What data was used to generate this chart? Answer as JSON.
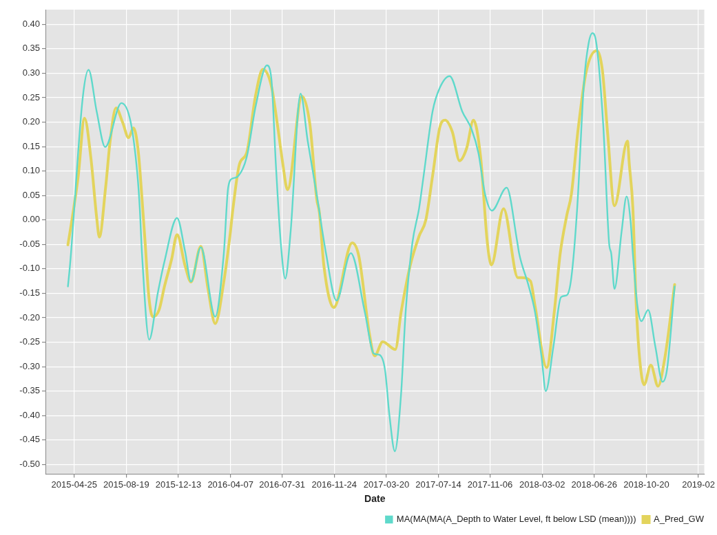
{
  "chart_data": {
    "type": "line",
    "xlabel": "Date",
    "xlim": [
      "2015-02-20",
      "2019-02-26"
    ],
    "xticks": [
      {
        "value": "2015-04-25",
        "label": "2015-04-25"
      },
      {
        "value": "2015-08-19",
        "label": "2015-08-19"
      },
      {
        "value": "2015-12-13",
        "label": "2015-12-13"
      },
      {
        "value": "2016-04-07",
        "label": "2016-04-07"
      },
      {
        "value": "2016-07-31",
        "label": "2016-07-31"
      },
      {
        "value": "2016-11-24",
        "label": "2016-11-24"
      },
      {
        "value": "2017-03-20",
        "label": "2017-03-20"
      },
      {
        "value": "2017-07-14",
        "label": "2017-07-14"
      },
      {
        "value": "2017-11-06",
        "label": "2017-11-06"
      },
      {
        "value": "2018-03-02",
        "label": "2018-03-02"
      },
      {
        "value": "2018-06-26",
        "label": "2018-06-26"
      },
      {
        "value": "2018-10-20",
        "label": "2018-10-20"
      },
      {
        "value": "2019-02-13",
        "label": "2019-02"
      }
    ],
    "ylim": [
      -0.52,
      0.43
    ],
    "yticks": [
      {
        "value": 0.4,
        "label": "0.40"
      },
      {
        "value": 0.35,
        "label": "0.35"
      },
      {
        "value": 0.3,
        "label": "0.30"
      },
      {
        "value": 0.25,
        "label": "0.25"
      },
      {
        "value": 0.2,
        "label": "0.20"
      },
      {
        "value": 0.15,
        "label": "0.15"
      },
      {
        "value": 0.1,
        "label": "0.10"
      },
      {
        "value": 0.05,
        "label": "0.05"
      },
      {
        "value": 0,
        "label": "0.00"
      },
      {
        "value": -0.05,
        "label": "-0.05"
      },
      {
        "value": -0.1,
        "label": "-0.10"
      },
      {
        "value": -0.15,
        "label": "-0.15"
      },
      {
        "value": -0.2,
        "label": "-0.20"
      },
      {
        "value": -0.25,
        "label": "-0.25"
      },
      {
        "value": -0.3,
        "label": "-0.30"
      },
      {
        "value": -0.35,
        "label": "-0.35"
      },
      {
        "value": -0.4,
        "label": "-0.40"
      },
      {
        "value": -0.45,
        "label": "-0.45"
      },
      {
        "value": -0.5,
        "label": "-0.50"
      }
    ],
    "grid": true,
    "legend": "bottom right",
    "marker": "none",
    "line_style": "solid",
    "series": [
      {
        "name": "MA(MA(MA(A_Depth to Water Level, ft below LSD (mean))))",
        "color": "#5fd9cb",
        "x": [
          "2015-04-11",
          "2015-04-16",
          "2015-05-14",
          "2015-05-27",
          "2015-06-14",
          "2015-07-03",
          "2015-08-08",
          "2015-08-29",
          "2015-09-13",
          "2015-09-18",
          "2015-09-23",
          "2015-10-09",
          "2015-10-28",
          "2015-11-12",
          "2015-12-10",
          "2015-12-28",
          "2016-01-10",
          "2016-02-01",
          "2016-03-04",
          "2016-03-23",
          "2016-04-02",
          "2016-04-12",
          "2016-04-22",
          "2016-05-13",
          "2016-06-02",
          "2016-06-27",
          "2016-07-07",
          "2016-07-17",
          "2016-07-28",
          "2016-08-07",
          "2016-08-19",
          "2016-09-10",
          "2016-09-26",
          "2016-10-16",
          "2016-11-06",
          "2016-11-29",
          "2016-12-31",
          "2017-01-31",
          "2017-02-20",
          "2017-03-05",
          "2017-03-17",
          "2017-03-27",
          "2017-04-08",
          "2017-04-22",
          "2017-05-02",
          "2017-05-17",
          "2017-06-01",
          "2017-06-11",
          "2017-07-01",
          "2017-07-17",
          "2017-08-08",
          "2017-09-05",
          "2017-09-26",
          "2017-10-11",
          "2017-10-26",
          "2017-11-10",
          "2017-12-13",
          "2018-01-05",
          "2018-01-10",
          "2018-01-30",
          "2018-02-14",
          "2018-03-01",
          "2018-03-10",
          "2018-03-27",
          "2018-04-13",
          "2018-04-26",
          "2018-05-06",
          "2018-05-19",
          "2018-06-03",
          "2018-06-13",
          "2018-06-22",
          "2018-07-01",
          "2018-07-16",
          "2018-07-29",
          "2018-08-03",
          "2018-08-10",
          "2018-08-26",
          "2018-09-06",
          "2018-09-15",
          "2018-09-20",
          "2018-09-30",
          "2018-10-09",
          "2018-10-24",
          "2018-11-09",
          "2018-11-25",
          "2018-12-05",
          "2018-12-22"
        ],
        "values": [
          -0.136,
          -0.089,
          0.25,
          0.307,
          0.222,
          0.149,
          0.239,
          0.199,
          0.09,
          0.024,
          -0.07,
          -0.245,
          -0.15,
          -0.085,
          0.004,
          -0.065,
          -0.126,
          -0.056,
          -0.198,
          -0.07,
          0.067,
          0.085,
          0.088,
          0.128,
          0.232,
          0.316,
          0.289,
          0.114,
          -0.047,
          -0.12,
          -0.023,
          0.258,
          0.161,
          0.052,
          -0.07,
          -0.165,
          -0.068,
          -0.188,
          -0.273,
          -0.276,
          -0.306,
          -0.4,
          -0.473,
          -0.354,
          -0.188,
          -0.047,
          0.024,
          0.09,
          0.222,
          0.27,
          0.294,
          0.222,
          0.185,
          0.137,
          0.052,
          0.019,
          0.066,
          -0.042,
          -0.07,
          -0.132,
          -0.188,
          -0.283,
          -0.35,
          -0.259,
          -0.158,
          -0.154,
          -0.118,
          0.024,
          0.279,
          0.359,
          0.382,
          0.359,
          0.194,
          -0.047,
          -0.07,
          -0.141,
          -0.023,
          0.048,
          -0.004,
          -0.07,
          -0.175,
          -0.207,
          -0.184,
          -0.259,
          -0.331,
          -0.306,
          -0.136
        ]
      },
      {
        "name": "A_Pred_GW",
        "color": "#e3d45c",
        "x": [
          "2015-04-11",
          "2015-04-24",
          "2015-05-04",
          "2015-05-18",
          "2015-06-01",
          "2015-06-14",
          "2015-06-20",
          "2015-07-04",
          "2015-07-14",
          "2015-07-27",
          "2015-08-11",
          "2015-08-24",
          "2015-09-04",
          "2015-09-15",
          "2015-09-23",
          "2015-09-30",
          "2015-10-08",
          "2015-10-17",
          "2015-10-31",
          "2015-11-12",
          "2015-11-28",
          "2015-12-10",
          "2015-12-28",
          "2016-01-10",
          "2016-02-01",
          "2016-02-17",
          "2016-03-04",
          "2016-03-23",
          "2016-04-07",
          "2016-04-12",
          "2016-04-27",
          "2016-05-13",
          "2016-06-02",
          "2016-06-18",
          "2016-07-07",
          "2016-07-22",
          "2016-08-01",
          "2016-08-12",
          "2016-09-13",
          "2016-10-01",
          "2016-10-16",
          "2016-10-22",
          "2016-11-01",
          "2016-11-23",
          "2017-01-03",
          "2017-01-18",
          "2017-02-10",
          "2017-02-22",
          "2017-03-12",
          "2017-04-09",
          "2017-04-22",
          "2017-05-12",
          "2017-06-01",
          "2017-06-16",
          "2017-07-01",
          "2017-07-17",
          "2017-07-29",
          "2017-08-14",
          "2017-08-30",
          "2017-09-15",
          "2017-09-30",
          "2017-10-16",
          "2017-10-31",
          "2017-11-09",
          "2017-12-06",
          "2018-01-07",
          "2018-01-15",
          "2018-02-04",
          "2018-02-14",
          "2018-03-12",
          "2018-03-29",
          "2018-04-11",
          "2018-04-26",
          "2018-05-06",
          "2018-05-21",
          "2018-06-08",
          "2018-07-01",
          "2018-07-14",
          "2018-07-26",
          "2018-08-10",
          "2018-09-08",
          "2018-09-12",
          "2018-09-20",
          "2018-09-27",
          "2018-10-05",
          "2018-10-15",
          "2018-10-30",
          "2018-11-15",
          "2018-11-30",
          "2018-12-22"
        ],
        "values": [
          -0.051,
          0.024,
          0.09,
          0.208,
          0.128,
          0.005,
          -0.035,
          0.067,
          0.161,
          0.229,
          0.199,
          0.168,
          0.188,
          0.137,
          0.043,
          -0.047,
          -0.155,
          -0.198,
          -0.184,
          -0.136,
          -0.08,
          -0.03,
          -0.094,
          -0.127,
          -0.054,
          -0.141,
          -0.212,
          -0.127,
          -0.023,
          0.019,
          0.114,
          0.137,
          0.255,
          0.308,
          0.274,
          0.185,
          0.118,
          0.062,
          0.253,
          0.194,
          0.043,
          0.015,
          -0.094,
          -0.179,
          -0.047,
          -0.075,
          -0.231,
          -0.278,
          -0.249,
          -0.265,
          -0.188,
          -0.094,
          -0.033,
          0.0,
          0.09,
          0.189,
          0.204,
          0.18,
          0.121,
          0.147,
          0.204,
          0.128,
          -0.047,
          -0.092,
          0.023,
          -0.118,
          -0.118,
          -0.125,
          -0.175,
          -0.302,
          -0.188,
          -0.07,
          0.01,
          0.052,
          0.185,
          0.303,
          0.346,
          0.307,
          0.175,
          0.029,
          0.161,
          0.114,
          0.024,
          -0.165,
          -0.283,
          -0.337,
          -0.297,
          -0.34,
          -0.283,
          -0.132
        ]
      }
    ]
  }
}
